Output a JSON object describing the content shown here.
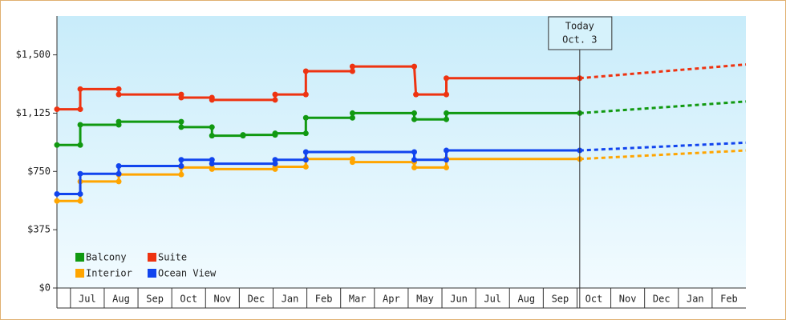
{
  "chart_data": {
    "type": "step-line",
    "xlim": [
      -0.4,
      20
    ],
    "ylim": [
      0,
      1750
    ],
    "yticks": [
      {
        "value": 0,
        "label": "$0"
      },
      {
        "value": 375,
        "label": "$375"
      },
      {
        "value": 750,
        "label": "$750"
      },
      {
        "value": 1125,
        "label": "$1,125"
      },
      {
        "value": 1500,
        "label": "$1,500"
      }
    ],
    "xticks": [
      {
        "value": 0.5,
        "label": "Jul"
      },
      {
        "value": 1.5,
        "label": "Aug"
      },
      {
        "value": 2.5,
        "label": "Sep"
      },
      {
        "value": 3.5,
        "label": "Oct"
      },
      {
        "value": 4.5,
        "label": "Nov"
      },
      {
        "value": 5.5,
        "label": "Dec"
      },
      {
        "value": 6.5,
        "label": "Jan"
      },
      {
        "value": 7.5,
        "label": "Feb"
      },
      {
        "value": 8.5,
        "label": "Mar"
      },
      {
        "value": 9.5,
        "label": "Apr"
      },
      {
        "value": 10.5,
        "label": "May"
      },
      {
        "value": 11.5,
        "label": "Jun"
      },
      {
        "value": 12.5,
        "label": "Jul"
      },
      {
        "value": 13.5,
        "label": "Aug"
      },
      {
        "value": 14.5,
        "label": "Sep"
      },
      {
        "value": 15.5,
        "label": "Oct"
      },
      {
        "value": 16.5,
        "label": "Nov"
      },
      {
        "value": 17.5,
        "label": "Dec"
      },
      {
        "value": 18.5,
        "label": "Jan"
      },
      {
        "value": 19.5,
        "label": "Feb"
      }
    ],
    "legend": "lower left",
    "annotation": {
      "x": 15.08,
      "lines": [
        "Today",
        "Oct. 3"
      ]
    },
    "forecast_x": [
      15.08,
      20
    ],
    "series": [
      {
        "name": "Balcony",
        "color": "#119911",
        "x": [
          -0.4,
          0.29,
          0.29,
          1.43,
          1.43,
          3.28,
          3.28,
          4.19,
          4.19,
          5.11,
          5.11,
          6.06,
          6.06,
          6.97,
          6.97,
          8.35,
          8.35,
          10.18,
          10.18,
          11.13,
          11.13,
          15.08
        ],
        "values": [
          920,
          920,
          1050,
          1050,
          1070,
          1070,
          1035,
          1035,
          980,
          980,
          985,
          985,
          995,
          995,
          1095,
          1095,
          1125,
          1125,
          1085,
          1085,
          1125,
          1125
        ],
        "forecast": [
          1125,
          1200
        ]
      },
      {
        "name": "Suite",
        "color": "#ee3311",
        "x": [
          -0.4,
          0.29,
          0.29,
          1.43,
          1.43,
          3.28,
          3.28,
          4.19,
          4.19,
          6.06,
          6.06,
          6.97,
          6.97,
          8.35,
          8.35,
          10.18,
          10.23,
          11.13,
          11.13,
          15.08
        ],
        "values": [
          1150,
          1150,
          1280,
          1280,
          1245,
          1245,
          1225,
          1225,
          1210,
          1210,
          1245,
          1245,
          1395,
          1395,
          1425,
          1425,
          1245,
          1245,
          1350,
          1350
        ],
        "forecast": [
          1350,
          1438
        ]
      },
      {
        "name": "Interior",
        "color": "#ffa500",
        "x": [
          -0.4,
          0.29,
          0.29,
          1.43,
          1.43,
          3.28,
          3.28,
          4.19,
          4.19,
          6.06,
          6.06,
          6.97,
          6.97,
          8.35,
          8.35,
          10.18,
          10.18,
          11.13,
          11.13,
          15.08
        ],
        "values": [
          560,
          560,
          685,
          685,
          730,
          730,
          775,
          775,
          765,
          765,
          780,
          780,
          830,
          830,
          810,
          810,
          775,
          775,
          830,
          830
        ],
        "forecast": [
          830,
          885
        ]
      },
      {
        "name": "Ocean View",
        "color": "#1144ee",
        "x": [
          -0.4,
          0.29,
          0.29,
          1.43,
          1.43,
          3.28,
          3.28,
          4.19,
          4.19,
          6.06,
          6.06,
          6.97,
          6.97,
          10.18,
          10.18,
          11.13,
          11.13,
          15.08
        ],
        "values": [
          605,
          605,
          735,
          735,
          785,
          785,
          825,
          825,
          800,
          800,
          825,
          825,
          875,
          875,
          825,
          825,
          885,
          885
        ],
        "forecast": [
          885,
          935
        ]
      }
    ]
  }
}
